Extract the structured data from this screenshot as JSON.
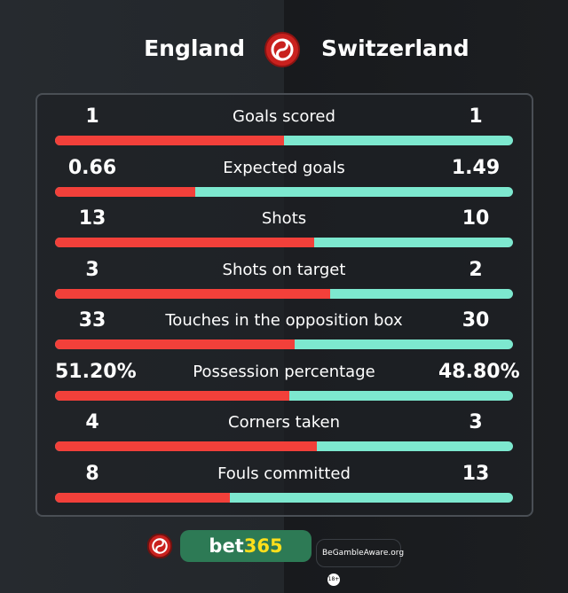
{
  "header": {
    "home_team": "England",
    "away_team": "Switzerland"
  },
  "stats": [
    {
      "label": "Goals scored",
      "home": "1",
      "away": "1",
      "home_value": 1,
      "away_value": 1
    },
    {
      "label": "Expected goals",
      "home": "0.66",
      "away": "1.49",
      "home_value": 0.66,
      "away_value": 1.49
    },
    {
      "label": "Shots",
      "home": "13",
      "away": "10",
      "home_value": 13,
      "away_value": 10
    },
    {
      "label": "Shots on target",
      "home": "3",
      "away": "2",
      "home_value": 3,
      "away_value": 2
    },
    {
      "label": "Touches in the opposition box",
      "home": "33",
      "away": "30",
      "home_value": 33,
      "away_value": 30
    },
    {
      "label": "Possession percentage",
      "home": "51.20%",
      "away": "48.80%",
      "home_value": 51.2,
      "away_value": 48.8
    },
    {
      "label": "Corners taken",
      "home": "4",
      "away": "3",
      "home_value": 4,
      "away_value": 3
    },
    {
      "label": "Fouls committed",
      "home": "8",
      "away": "13",
      "home_value": 8,
      "away_value": 13
    }
  ],
  "colors": {
    "home": "#f2403a",
    "away": "#7de8cf"
  },
  "footer": {
    "bet_a": "bet",
    "bet_b": "365",
    "gamble_aware": "BeGambleAware.org",
    "age": "18+"
  }
}
